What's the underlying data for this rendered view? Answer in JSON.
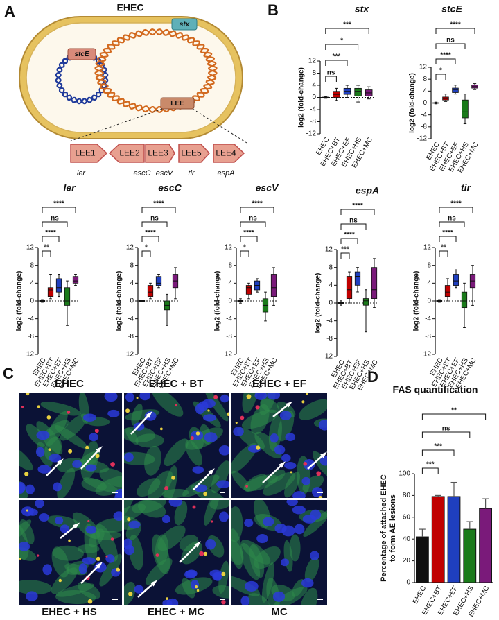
{
  "panel_labels": [
    "A",
    "B",
    "C",
    "D"
  ],
  "diagram": {
    "title": "EHEC",
    "plasmid_gene": "stcE",
    "chromosome_gene": "stx",
    "island": "LEE",
    "operons": [
      "LEE1",
      "LEE2",
      "LEE3",
      "LEE5",
      "LEE4"
    ],
    "genes": [
      "ler",
      "escC",
      "escV",
      "tir",
      "espA"
    ]
  },
  "chart_data": [
    {
      "type": "box",
      "title": "stx",
      "y_label": "log2 (fold-change)",
      "categories": [
        "EHEC",
        "EHEC+BT",
        "EHEC+EF",
        "EHEC+HS",
        "EHEC+MC"
      ],
      "colors": [
        "#111111",
        "#c00000",
        "#1f3fbf",
        "#1a7a1a",
        "#7a1a7a"
      ],
      "boxes": [
        {
          "min": -0.3,
          "q1": -0.1,
          "median": 0,
          "q3": 0.1,
          "max": 0.3
        },
        {
          "min": -1,
          "q1": 0,
          "median": 1,
          "q3": 2,
          "max": 3
        },
        {
          "min": 0,
          "q1": 1,
          "median": 2,
          "q3": 3,
          "max": 4
        },
        {
          "min": -1.5,
          "q1": 0.5,
          "median": 2,
          "q3": 3,
          "max": 4
        },
        {
          "min": -0.5,
          "q1": 0.5,
          "median": 1.5,
          "q3": 2.5,
          "max": 3.5
        }
      ],
      "ylim": [
        -12,
        12
      ],
      "yticks": [
        -12,
        -8,
        -4,
        0,
        4,
        8,
        12
      ],
      "significance": [
        "ns",
        "***",
        "*",
        "***"
      ]
    },
    {
      "type": "box",
      "title": "stcE",
      "y_label": "log2 (fold-change)",
      "categories": [
        "EHEC",
        "EHEC+BT",
        "EHEC+EF",
        "EHEC+HS",
        "EHEC+MC"
      ],
      "colors": [
        "#111111",
        "#c00000",
        "#1f3fbf",
        "#1a7a1a",
        "#7a1a7a"
      ],
      "boxes": [
        {
          "min": -0.3,
          "q1": -0.1,
          "median": 0,
          "q3": 0.1,
          "max": 0.3
        },
        {
          "min": 0.5,
          "q1": 1,
          "median": 1.5,
          "q3": 2,
          "max": 3
        },
        {
          "min": 3,
          "q1": 3.5,
          "median": 4.5,
          "q3": 5,
          "max": 6
        },
        {
          "min": -7,
          "q1": -5,
          "median": -3,
          "q3": 1,
          "max": 3
        },
        {
          "min": 4.5,
          "q1": 5,
          "median": 5.5,
          "q3": 6,
          "max": 6.5
        }
      ],
      "ylim": [
        -12,
        12
      ],
      "yticks": [
        -12,
        -8,
        -4,
        0,
        4,
        8,
        12
      ],
      "significance": [
        "*",
        "****",
        "ns",
        "****"
      ]
    },
    {
      "type": "box",
      "title": "ler",
      "y_label": "log2 (fold-change)",
      "categories": [
        "EHEC",
        "EHEC+BT",
        "EHEC+EF",
        "EHEC+HS",
        "EHEC+MC"
      ],
      "colors": [
        "#111111",
        "#c00000",
        "#1f3fbf",
        "#1a7a1a",
        "#7a1a7a"
      ],
      "boxes": [
        {
          "min": -0.3,
          "q1": -0.1,
          "median": 0,
          "q3": 0.1,
          "max": 0.3
        },
        {
          "min": 0.5,
          "q1": 1,
          "median": 2.5,
          "q3": 3,
          "max": 6
        },
        {
          "min": 1,
          "q1": 2,
          "median": 3,
          "q3": 5,
          "max": 6
        },
        {
          "min": -5.5,
          "q1": -1,
          "median": 0,
          "q3": 3,
          "max": 4.5
        },
        {
          "min": 3.5,
          "q1": 4,
          "median": 4.5,
          "q3": 5.5,
          "max": 6
        }
      ],
      "ylim": [
        -12,
        12
      ],
      "yticks": [
        -12,
        -8,
        -4,
        0,
        4,
        8,
        12
      ],
      "significance": [
        "**",
        "****",
        "ns",
        "****"
      ]
    },
    {
      "type": "box",
      "title": "escC",
      "y_label": "log2 (fold-change)",
      "categories": [
        "EHEC",
        "EHEC+BT",
        "EHEC+EF",
        "EHEC+HS",
        "EHEC+MC"
      ],
      "colors": [
        "#111111",
        "#c00000",
        "#1f3fbf",
        "#1a7a1a",
        "#7a1a7a"
      ],
      "boxes": [
        {
          "min": -0.2,
          "q1": -0.1,
          "median": 0,
          "q3": 0.1,
          "max": 0.2
        },
        {
          "min": 0.5,
          "q1": 1,
          "median": 2,
          "q3": 3.5,
          "max": 4
        },
        {
          "min": 3,
          "q1": 3.5,
          "median": 4,
          "q3": 5.5,
          "max": 6
        },
        {
          "min": -5.5,
          "q1": -2,
          "median": -1,
          "q3": 0,
          "max": 1.5
        },
        {
          "min": 0.5,
          "q1": 3,
          "median": 4.5,
          "q3": 6,
          "max": 7.5
        }
      ],
      "ylim": [
        -12,
        12
      ],
      "yticks": [
        -12,
        -8,
        -4,
        0,
        4,
        8,
        12
      ],
      "significance": [
        "*",
        "****",
        "ns",
        "****"
      ]
    },
    {
      "type": "box",
      "title": "escV",
      "y_label": "log2 (fold-change)",
      "categories": [
        "EHEC",
        "EHEC+BT",
        "EHEC+EF",
        "EHEC+HS",
        "EHEC+MC"
      ],
      "colors": [
        "#111111",
        "#c00000",
        "#1f3fbf",
        "#1a7a1a",
        "#7a1a7a"
      ],
      "boxes": [
        {
          "min": -0.5,
          "q1": -0.2,
          "median": 0,
          "q3": 0.2,
          "max": 0.5
        },
        {
          "min": 0.5,
          "q1": 1.5,
          "median": 3,
          "q3": 3.5,
          "max": 4
        },
        {
          "min": 2,
          "q1": 2.5,
          "median": 3.5,
          "q3": 4.5,
          "max": 5
        },
        {
          "min": -4.5,
          "q1": -2.5,
          "median": -1,
          "q3": 0.5,
          "max": 2
        },
        {
          "min": -1,
          "q1": 1,
          "median": 3,
          "q3": 6,
          "max": 7.5
        }
      ],
      "ylim": [
        -12,
        12
      ],
      "yticks": [
        -12,
        -8,
        -4,
        0,
        4,
        8,
        12
      ],
      "significance": [
        "*",
        "****",
        "ns",
        "****"
      ]
    },
    {
      "type": "box",
      "title": "espA",
      "y_label": "log2 (fold-change)",
      "categories": [
        "EHEC",
        "EHEC+BT",
        "EHEC+EF",
        "EHEC+HS",
        "EHEC+MC"
      ],
      "colors": [
        "#111111",
        "#c00000",
        "#1f3fbf",
        "#1a7a1a",
        "#7a1a7a"
      ],
      "boxes": [
        {
          "min": -0.5,
          "q1": -0.2,
          "median": 0,
          "q3": 0.2,
          "max": 0.5
        },
        {
          "min": 0,
          "q1": 1,
          "median": 3,
          "q3": 6,
          "max": 7
        },
        {
          "min": 2.5,
          "q1": 4,
          "median": 6,
          "q3": 7,
          "max": 8
        },
        {
          "min": -6.5,
          "q1": -0.5,
          "median": 0.5,
          "q3": 1,
          "max": 3
        },
        {
          "min": -1,
          "q1": 1,
          "median": 3,
          "q3": 8,
          "max": 10
        }
      ],
      "ylim": [
        -12,
        12
      ],
      "yticks": [
        -12,
        -8,
        -4,
        0,
        4,
        8,
        12
      ],
      "significance": [
        "***",
        "****",
        "ns",
        "****"
      ]
    },
    {
      "type": "box",
      "title": "tir",
      "y_label": "log2 (fold-change)",
      "categories": [
        "EHEC",
        "EHEC+BT",
        "EHEC+EF",
        "EHEC+HS",
        "EHEC+MC"
      ],
      "colors": [
        "#111111",
        "#c00000",
        "#1f3fbf",
        "#1a7a1a",
        "#7a1a7a"
      ],
      "boxes": [
        {
          "min": -0.3,
          "q1": -0.1,
          "median": 0,
          "q3": 0.1,
          "max": 0.3
        },
        {
          "min": 0,
          "q1": 1,
          "median": 2,
          "q3": 3.5,
          "max": 5
        },
        {
          "min": 3,
          "q1": 3.5,
          "median": 4.5,
          "q3": 6,
          "max": 7
        },
        {
          "min": -6,
          "q1": -1.5,
          "median": 0,
          "q3": 2,
          "max": 4
        },
        {
          "min": -1,
          "q1": 3,
          "median": 4.5,
          "q3": 6,
          "max": 8
        }
      ],
      "ylim": [
        -12,
        12
      ],
      "yticks": [
        -12,
        -8,
        -4,
        0,
        4,
        8,
        12
      ],
      "significance": [
        "**",
        "****",
        "ns",
        "****"
      ]
    },
    {
      "type": "bar",
      "title": "FAS quantification",
      "y_label": [
        "Percentage of attached EHEC",
        "to form AE lesions"
      ],
      "categories": [
        "EHEC",
        "EHEC+BT",
        "EHEC+EF",
        "EHEC+HS",
        "EHEC+MC"
      ],
      "colors": [
        "#111111",
        "#c00000",
        "#1f3fbf",
        "#1a7a1a",
        "#7a1a7a"
      ],
      "values": [
        42,
        79,
        79,
        49,
        68
      ],
      "errors": [
        7,
        1,
        13,
        7,
        9
      ],
      "ylim": [
        0,
        100
      ],
      "yticks": [
        0,
        20,
        40,
        60,
        80,
        100
      ],
      "significance": [
        "***",
        "***",
        "ns",
        "**"
      ]
    }
  ],
  "micrographs": {
    "labels": [
      "EHEC",
      "EHEC + BT",
      "EHEC + EF",
      "EHEC + HS",
      "EHEC + MC",
      "MC"
    ]
  }
}
